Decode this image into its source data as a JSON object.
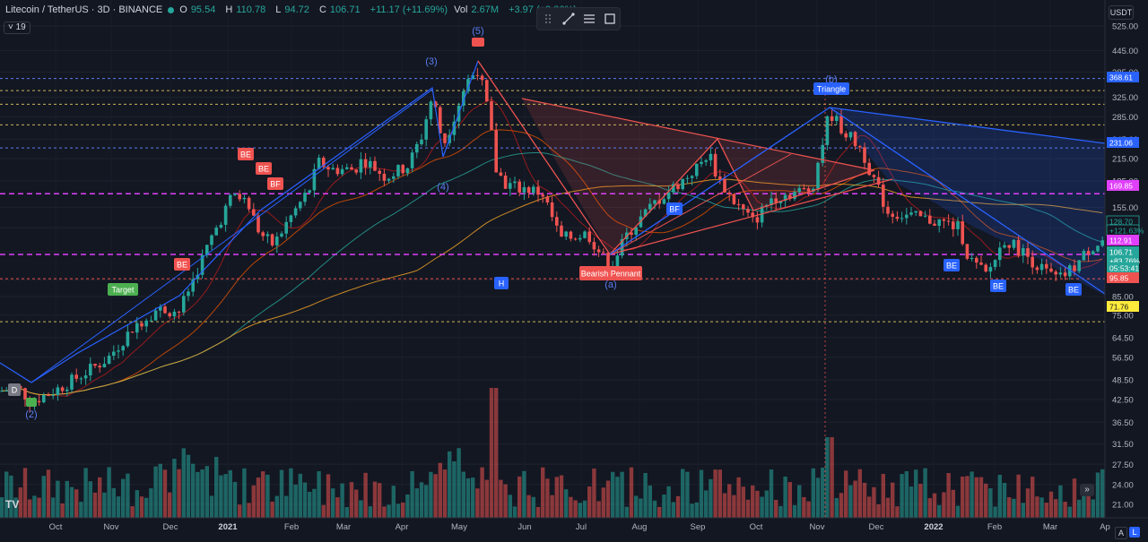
{
  "header": {
    "symbol": "Litecoin / TetherUS · 3D · BINANCE",
    "open_label": "O",
    "open": "95.54",
    "high_label": "H",
    "high": "110.78",
    "low_label": "L",
    "low": "94.72",
    "close_label": "C",
    "close": "106.71",
    "change": "+11.17 (+11.69%)",
    "vol_label": "Vol",
    "vol": "2.67M",
    "vol_change": "+3.97 (+3.86%)",
    "interval_badge": "19"
  },
  "currency": "USDT",
  "toolbar": [
    "drag-handle-icon",
    "trendline-icon",
    "multi-line-icon",
    "rectangle-icon"
  ],
  "buttons": {
    "auto": "A",
    "log": "L",
    "jump": "»"
  },
  "logo": "TV",
  "colors": {
    "up": "#26a69a",
    "down": "#ef5350",
    "blue": "#2962ff",
    "magenta": "#e040fb",
    "yellow": "#ffeb3b"
  },
  "chart_data": {
    "type": "candlestick",
    "price_axis": {
      "scale": "log",
      "range": [
        19,
        600
      ],
      "ticks": [
        "525.00",
        "445.00",
        "385.00",
        "325.00",
        "285.00",
        "245.00",
        "215.00",
        "185.00",
        "155.00",
        "135.00",
        "115.00",
        "95.00",
        "85.00",
        "75.00",
        "64.50",
        "56.50",
        "48.50",
        "42.50",
        "36.50",
        "31.50",
        "27.50",
        "24.00",
        "21.00"
      ]
    },
    "time_axis": {
      "labels": [
        "Oct",
        "Nov",
        "Dec",
        "2021",
        "Feb",
        "Mar",
        "Apr",
        "May",
        "Jun",
        "Jul",
        "Aug",
        "Sep",
        "Oct",
        "Nov",
        "Dec",
        "2022",
        "Feb",
        "Mar",
        "Ap"
      ]
    },
    "price_tags": [
      {
        "value": "368.61",
        "style": "blue"
      },
      {
        "value": "231.06",
        "style": "blue"
      },
      {
        "value": "169.85",
        "style": "magenta"
      },
      {
        "value": "128.70",
        "style": "outline-green"
      },
      {
        "value": "+121.63%",
        "style": "outline-green"
      },
      {
        "value": "112.91",
        "style": "magenta"
      },
      {
        "value": "106.71",
        "style": "green"
      },
      {
        "value": "+83.76%",
        "style": "green"
      },
      {
        "value": "05:53:41",
        "style": "green"
      },
      {
        "value": "95.85",
        "style": "red"
      },
      {
        "value": "71.76",
        "style": "yellow"
      }
    ],
    "horizontal_levels": [
      {
        "value": 368.61,
        "style": "dashed-blue"
      },
      {
        "value": 340,
        "style": "dashed-yellow"
      },
      {
        "value": 310,
        "style": "dashed-yellow"
      },
      {
        "value": 270,
        "style": "dashed-yellow"
      },
      {
        "value": 231.06,
        "style": "dashed-blue"
      },
      {
        "value": 169.85,
        "style": "dashed-magenta"
      },
      {
        "value": 112.91,
        "style": "dashed-magenta"
      },
      {
        "value": 95.85,
        "style": "dashed-red"
      },
      {
        "value": 71.76,
        "style": "dashed-yellow"
      }
    ],
    "annotations": [
      {
        "text": "(5)",
        "kind": "wave"
      },
      {
        "text": "(3)",
        "kind": "wave"
      },
      {
        "text": "(4)",
        "kind": "wave"
      },
      {
        "text": "(2)",
        "kind": "wave"
      },
      {
        "text": "(b)",
        "kind": "wave"
      },
      {
        "text": "(a)",
        "kind": "wave"
      },
      {
        "text": "Triangle",
        "kind": "pattern"
      },
      {
        "text": "Bearish Pennant",
        "kind": "pattern"
      },
      {
        "text": "Target",
        "kind": "signal"
      },
      {
        "text": "BE",
        "kind": "signal"
      },
      {
        "text": "BF",
        "kind": "signal"
      },
      {
        "text": "H",
        "kind": "signal"
      },
      {
        "text": "D",
        "kind": "signal"
      }
    ]
  }
}
